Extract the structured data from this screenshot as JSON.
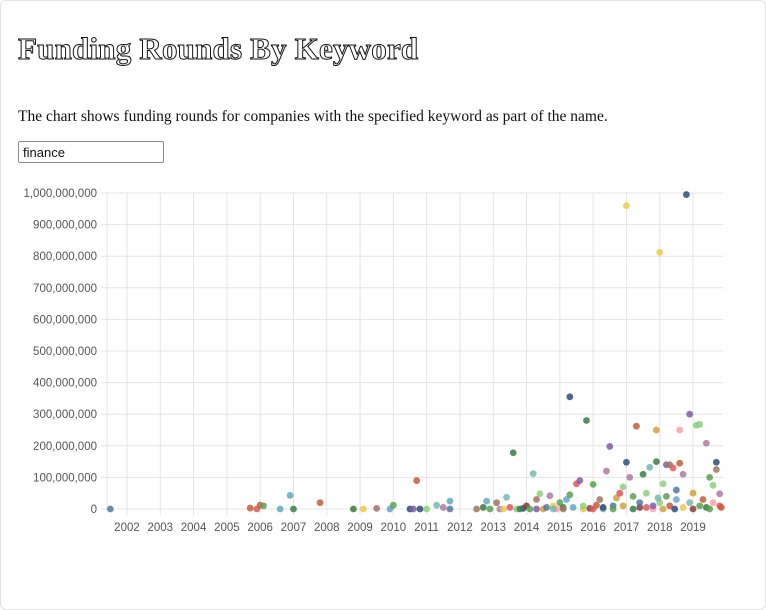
{
  "page": {
    "title": "Funding Rounds By Keyword",
    "description": "The chart shows funding rounds for companies with the specified keyword as part of the name.",
    "keyword_value": "finance"
  },
  "chart_data": {
    "type": "scatter",
    "title": "",
    "xlabel": "",
    "ylabel": "",
    "xlim": [
      2001.4,
      2019.9
    ],
    "ylim": [
      0,
      1000000000
    ],
    "x_ticks": [
      "2002",
      "2003",
      "2004",
      "2005",
      "2006",
      "2007",
      "2008",
      "2009",
      "2010",
      "2011",
      "2012",
      "2013",
      "2014",
      "2015",
      "2016",
      "2017",
      "2018",
      "2019"
    ],
    "y_ticks": [
      "0",
      "100,000,000",
      "200,000,000",
      "300,000,000",
      "400,000,000",
      "500,000,000",
      "600,000,000",
      "700,000,000",
      "800,000,000",
      "900,000,000",
      "1,000,000,000"
    ],
    "grid": true,
    "palette": [
      "#4e79a7",
      "#59a14f",
      "#e15759",
      "#76b7b2",
      "#edc948",
      "#b07aa1",
      "#ff9da7",
      "#9c755f",
      "#8cd17d",
      "#2f4b7c",
      "#3a7d44",
      "#c85a3a",
      "#d4a03a",
      "#5fa8c9",
      "#8b3a3a",
      "#7b5ea7"
    ],
    "points": [
      {
        "x": 2001.5,
        "y": 0,
        "c": 0
      },
      {
        "x": 2005.7,
        "y": 3000000,
        "c": 11
      },
      {
        "x": 2005.9,
        "y": 0,
        "c": 2
      },
      {
        "x": 2006.0,
        "y": 12000000,
        "c": 11
      },
      {
        "x": 2006.1,
        "y": 10000000,
        "c": 1
      },
      {
        "x": 2006.6,
        "y": 0,
        "c": 13
      },
      {
        "x": 2006.9,
        "y": 43000000,
        "c": 13
      },
      {
        "x": 2007.0,
        "y": 0,
        "c": 10
      },
      {
        "x": 2007.8,
        "y": 20000000,
        "c": 11
      },
      {
        "x": 2008.8,
        "y": 0,
        "c": 10
      },
      {
        "x": 2009.1,
        "y": 0,
        "c": 4
      },
      {
        "x": 2009.5,
        "y": 2000000,
        "c": 7
      },
      {
        "x": 2009.9,
        "y": 0,
        "c": 13
      },
      {
        "x": 2010.0,
        "y": 12000000,
        "c": 1
      },
      {
        "x": 2010.5,
        "y": 0,
        "c": 9
      },
      {
        "x": 2010.6,
        "y": 0,
        "c": 15
      },
      {
        "x": 2010.7,
        "y": 90000000,
        "c": 11
      },
      {
        "x": 2010.8,
        "y": 0,
        "c": 9
      },
      {
        "x": 2011.0,
        "y": 0,
        "c": 8
      },
      {
        "x": 2011.3,
        "y": 12000000,
        "c": 3
      },
      {
        "x": 2011.5,
        "y": 5000000,
        "c": 5
      },
      {
        "x": 2011.7,
        "y": 25000000,
        "c": 13
      },
      {
        "x": 2011.7,
        "y": 0,
        "c": 0
      },
      {
        "x": 2012.5,
        "y": 0,
        "c": 7
      },
      {
        "x": 2012.7,
        "y": 5000000,
        "c": 10
      },
      {
        "x": 2012.8,
        "y": 25000000,
        "c": 13
      },
      {
        "x": 2012.9,
        "y": 0,
        "c": 1
      },
      {
        "x": 2013.1,
        "y": 20000000,
        "c": 7
      },
      {
        "x": 2013.2,
        "y": 0,
        "c": 5
      },
      {
        "x": 2013.4,
        "y": 37000000,
        "c": 3
      },
      {
        "x": 2013.5,
        "y": 5000000,
        "c": 2
      },
      {
        "x": 2013.6,
        "y": 178000000,
        "c": 10
      },
      {
        "x": 2013.7,
        "y": 0,
        "c": 8
      },
      {
        "x": 2013.9,
        "y": 2000000,
        "c": 9
      },
      {
        "x": 2014.0,
        "y": 10000000,
        "c": 14
      },
      {
        "x": 2014.1,
        "y": 0,
        "c": 1
      },
      {
        "x": 2014.2,
        "y": 112000000,
        "c": 3
      },
      {
        "x": 2014.3,
        "y": 30000000,
        "c": 7
      },
      {
        "x": 2014.4,
        "y": 48000000,
        "c": 8
      },
      {
        "x": 2014.5,
        "y": 0,
        "c": 12
      },
      {
        "x": 2014.6,
        "y": 5000000,
        "c": 0
      },
      {
        "x": 2014.7,
        "y": 42000000,
        "c": 5
      },
      {
        "x": 2014.8,
        "y": 10000000,
        "c": 4
      },
      {
        "x": 2014.9,
        "y": 0,
        "c": 6
      },
      {
        "x": 2015.0,
        "y": 20000000,
        "c": 1
      },
      {
        "x": 2015.1,
        "y": 5000000,
        "c": 10
      },
      {
        "x": 2015.2,
        "y": 30000000,
        "c": 13
      },
      {
        "x": 2015.3,
        "y": 45000000,
        "c": 1
      },
      {
        "x": 2015.3,
        "y": 355000000,
        "c": 9
      },
      {
        "x": 2015.5,
        "y": 80000000,
        "c": 2
      },
      {
        "x": 2015.6,
        "y": 90000000,
        "c": 15
      },
      {
        "x": 2015.7,
        "y": 0,
        "c": 4
      },
      {
        "x": 2015.8,
        "y": 280000000,
        "c": 10
      },
      {
        "x": 2015.9,
        "y": 2000000,
        "c": 14
      },
      {
        "x": 2016.0,
        "y": 78000000,
        "c": 1
      },
      {
        "x": 2016.1,
        "y": 12000000,
        "c": 11
      },
      {
        "x": 2016.2,
        "y": 30000000,
        "c": 7
      },
      {
        "x": 2016.3,
        "y": 0,
        "c": 3
      },
      {
        "x": 2016.4,
        "y": 120000000,
        "c": 5
      },
      {
        "x": 2016.5,
        "y": 198000000,
        "c": 15
      },
      {
        "x": 2016.6,
        "y": 10000000,
        "c": 0
      },
      {
        "x": 2016.7,
        "y": 35000000,
        "c": 12
      },
      {
        "x": 2016.8,
        "y": 50000000,
        "c": 2
      },
      {
        "x": 2016.9,
        "y": 70000000,
        "c": 8
      },
      {
        "x": 2017.0,
        "y": 148000000,
        "c": 9
      },
      {
        "x": 2017.0,
        "y": 960000000,
        "c": 4
      },
      {
        "x": 2017.1,
        "y": 100000000,
        "c": 5
      },
      {
        "x": 2017.2,
        "y": 40000000,
        "c": 1
      },
      {
        "x": 2017.3,
        "y": 262000000,
        "c": 11
      },
      {
        "x": 2017.4,
        "y": 5000000,
        "c": 14
      },
      {
        "x": 2017.5,
        "y": 110000000,
        "c": 10
      },
      {
        "x": 2017.6,
        "y": 50000000,
        "c": 8
      },
      {
        "x": 2017.7,
        "y": 132000000,
        "c": 3
      },
      {
        "x": 2017.8,
        "y": 0,
        "c": 6
      },
      {
        "x": 2017.9,
        "y": 250000000,
        "c": 12
      },
      {
        "x": 2017.9,
        "y": 150000000,
        "c": 10
      },
      {
        "x": 2018.0,
        "y": 812000000,
        "c": 4
      },
      {
        "x": 2018.1,
        "y": 80000000,
        "c": 8
      },
      {
        "x": 2018.2,
        "y": 140000000,
        "c": 15
      },
      {
        "x": 2018.3,
        "y": 140000000,
        "c": 7
      },
      {
        "x": 2018.4,
        "y": 130000000,
        "c": 2
      },
      {
        "x": 2018.5,
        "y": 60000000,
        "c": 0
      },
      {
        "x": 2018.6,
        "y": 250000000,
        "c": 6
      },
      {
        "x": 2018.6,
        "y": 145000000,
        "c": 11
      },
      {
        "x": 2018.7,
        "y": 110000000,
        "c": 5
      },
      {
        "x": 2018.8,
        "y": 995000000,
        "c": 9
      },
      {
        "x": 2018.9,
        "y": 300000000,
        "c": 15
      },
      {
        "x": 2019.0,
        "y": 50000000,
        "c": 12
      },
      {
        "x": 2019.1,
        "y": 265000000,
        "c": 8
      },
      {
        "x": 2019.2,
        "y": 268000000,
        "c": 8
      },
      {
        "x": 2019.3,
        "y": 30000000,
        "c": 11
      },
      {
        "x": 2019.4,
        "y": 208000000,
        "c": 5
      },
      {
        "x": 2019.5,
        "y": 100000000,
        "c": 1
      },
      {
        "x": 2019.6,
        "y": 75000000,
        "c": 8
      },
      {
        "x": 2019.7,
        "y": 148000000,
        "c": 9
      },
      {
        "x": 2019.7,
        "y": 125000000,
        "c": 7
      },
      {
        "x": 2019.8,
        "y": 48000000,
        "c": 5
      },
      {
        "x": 2019.8,
        "y": 10000000,
        "c": 2
      },
      {
        "x": 2019.6,
        "y": 20000000,
        "c": 6
      },
      {
        "x": 2019.4,
        "y": 5000000,
        "c": 10
      },
      {
        "x": 2019.2,
        "y": 10000000,
        "c": 1
      },
      {
        "x": 2019.0,
        "y": 0,
        "c": 14
      },
      {
        "x": 2018.9,
        "y": 20000000,
        "c": 3
      },
      {
        "x": 2018.7,
        "y": 5000000,
        "c": 4
      },
      {
        "x": 2018.5,
        "y": 30000000,
        "c": 13
      },
      {
        "x": 2018.3,
        "y": 10000000,
        "c": 11
      },
      {
        "x": 2018.2,
        "y": 40000000,
        "c": 1
      },
      {
        "x": 2018.0,
        "y": 20000000,
        "c": 8
      },
      {
        "x": 2017.8,
        "y": 10000000,
        "c": 15
      },
      {
        "x": 2017.6,
        "y": 5000000,
        "c": 2
      },
      {
        "x": 2017.4,
        "y": 20000000,
        "c": 0
      },
      {
        "x": 2017.2,
        "y": 0,
        "c": 10
      },
      {
        "x": 2016.9,
        "y": 10000000,
        "c": 12
      },
      {
        "x": 2016.6,
        "y": 0,
        "c": 1
      },
      {
        "x": 2016.3,
        "y": 5000000,
        "c": 9
      },
      {
        "x": 2016.0,
        "y": 0,
        "c": 2
      },
      {
        "x": 2015.7,
        "y": 10000000,
        "c": 8
      },
      {
        "x": 2015.4,
        "y": 5000000,
        "c": 13
      },
      {
        "x": 2015.1,
        "y": 0,
        "c": 7
      },
      {
        "x": 2014.8,
        "y": 0,
        "c": 3
      },
      {
        "x": 2014.3,
        "y": 0,
        "c": 15
      },
      {
        "x": 2013.8,
        "y": 0,
        "c": 10
      },
      {
        "x": 2013.3,
        "y": 0,
        "c": 4
      },
      {
        "x": 2019.85,
        "y": 5000000,
        "c": 11
      },
      {
        "x": 2019.5,
        "y": 0,
        "c": 1
      },
      {
        "x": 2018.45,
        "y": 0,
        "c": 9
      },
      {
        "x": 2018.1,
        "y": 0,
        "c": 12
      },
      {
        "x": 2017.95,
        "y": 35000000,
        "c": 3
      }
    ]
  }
}
